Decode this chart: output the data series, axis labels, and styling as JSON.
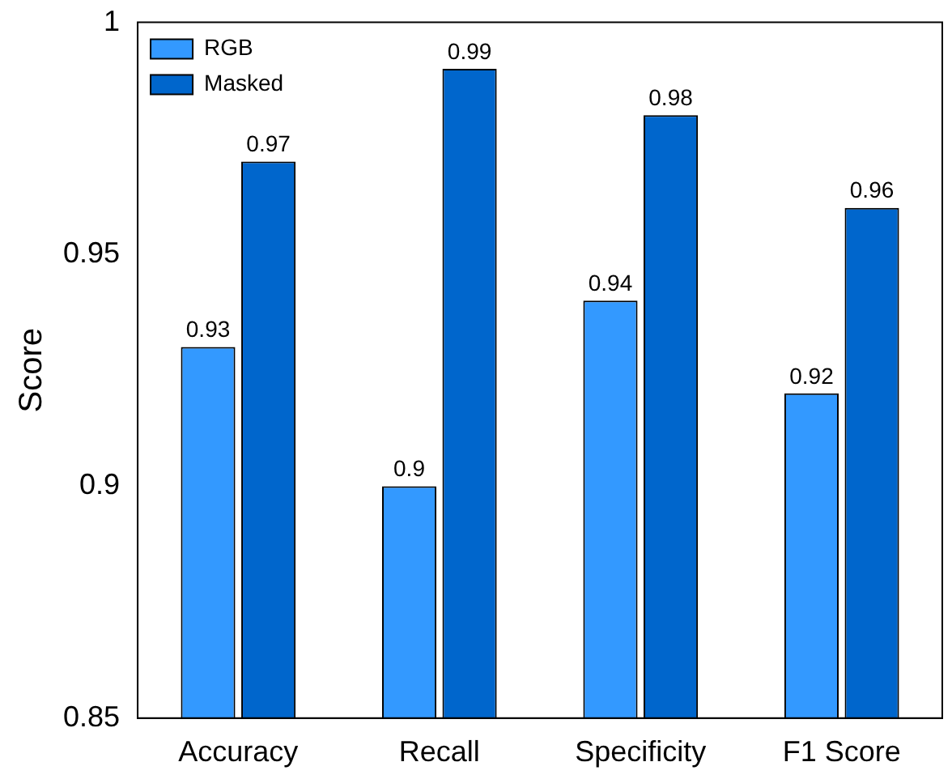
{
  "chart_data": {
    "type": "bar",
    "ylabel": "Score",
    "categories": [
      "Accuracy",
      "Recall",
      "Specificity",
      "F1 Score"
    ],
    "series": [
      {
        "name": "RGB",
        "color": "#3399ff",
        "values": [
          0.93,
          0.9,
          0.94,
          0.92
        ]
      },
      {
        "name": "Masked",
        "color": "#0066cc",
        "values": [
          0.97,
          0.99,
          0.98,
          0.96
        ]
      }
    ],
    "ylim": [
      0.85,
      1
    ],
    "yticks": [
      0.85,
      0.9,
      0.95,
      1
    ],
    "data_labels": true,
    "grid": false,
    "legend": "top left"
  }
}
